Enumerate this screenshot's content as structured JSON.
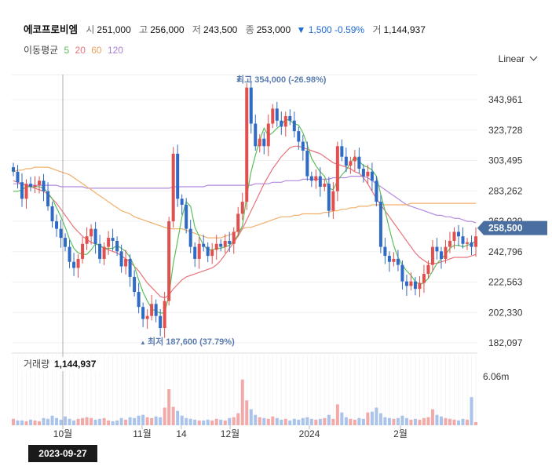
{
  "header": {
    "name": "에코프로비엠",
    "open_label": "시",
    "open": "251,000",
    "high_label": "고",
    "high": "256,000",
    "low_label": "저",
    "low": "243,500",
    "close_label": "종",
    "close": "253,000",
    "change": "▼ 1,500 -0.59%",
    "volume_label": "거",
    "volume": "1,144,937"
  },
  "ma": {
    "label": "이동평균",
    "p5": "5",
    "p20": "20",
    "p60": "60",
    "p120": "120"
  },
  "scale_mode": "Linear",
  "cursor_date": "2023-09-27",
  "colors": {
    "up": "#e0504e",
    "down": "#2f6bc5",
    "ma5": "#5cbf5c",
    "ma20": "#e8737a",
    "ma60": "#f2b06b",
    "ma120": "#b48ae0",
    "price_tag": "#4a6ea0"
  },
  "chart_data": {
    "type": "candlestick",
    "price_ticks": [
      "343,961",
      "323,728",
      "303,495",
      "283,262",
      "263,029",
      "242,796",
      "222,563",
      "202,330",
      "182,097"
    ],
    "volume_tick": "6.06m",
    "x_labels": [
      "10월",
      "11월",
      "14",
      "12월",
      "2024",
      "2월"
    ],
    "current_price": "258,500",
    "annotation_high": "최고 354,000 (-26.98%)",
    "annotation_low": "최저 187,600 (37.79%)",
    "volume_label": "거래량",
    "volume_value": "1,144,937",
    "closes": [
      296000,
      289000,
      278000,
      288000,
      286000,
      287000,
      290000,
      283000,
      273000,
      263000,
      258000,
      252000,
      246000,
      236000,
      232000,
      238000,
      248000,
      253000,
      258000,
      248000,
      238000,
      246000,
      252000,
      250000,
      243000,
      233000,
      238000,
      226000,
      216000,
      206000,
      198000,
      200000,
      208000,
      200000,
      192000,
      210000,
      263000,
      308000,
      278000,
      274000,
      258000,
      246000,
      238000,
      248000,
      246000,
      240000,
      244000,
      248000,
      246000,
      250000,
      248000,
      256000,
      268000,
      276000,
      352000,
      328000,
      313000,
      318000,
      313000,
      328000,
      338000,
      330000,
      326000,
      333000,
      330000,
      323000,
      316000,
      310000,
      293000,
      290000,
      293000,
      286000,
      288000,
      270000,
      283000,
      313000,
      306000,
      300000,
      303000,
      306000,
      298000,
      293000,
      296000,
      290000,
      276000,
      246000,
      240000,
      236000,
      238000,
      234000,
      223000,
      220000,
      223000,
      218000,
      222000,
      228000,
      234000,
      246000,
      243000,
      238000,
      246000,
      250000,
      256000,
      253000,
      248000,
      249000,
      246000,
      253000
    ],
    "ma5": [
      283000,
      283000,
      284000,
      286000,
      286000,
      286000,
      286000,
      285000,
      282000,
      278000,
      272000,
      266000,
      259000,
      251000,
      245000,
      242000,
      241000,
      241000,
      244000,
      248000,
      247000,
      245000,
      245000,
      245000,
      247000,
      245000,
      243000,
      239000,
      233000,
      224000,
      216000,
      210000,
      205000,
      203000,
      202000,
      202000,
      214000,
      235000,
      250000,
      266000,
      276000,
      273000,
      259000,
      253000,
      247000,
      244000,
      244000,
      245000,
      245000,
      246000,
      247000,
      250000,
      254000,
      260000,
      280000,
      296000,
      307000,
      317000,
      325000,
      320000,
      322000,
      325000,
      327000,
      331000,
      330000,
      328000,
      327000,
      322000,
      314000,
      305000,
      300000,
      296000,
      293000,
      285000,
      284000,
      290000,
      294000,
      297000,
      302000,
      306000,
      303000,
      300000,
      299000,
      297000,
      293000,
      281000,
      270000,
      258000,
      247000,
      239000,
      234000,
      230000,
      227000,
      223000,
      221000,
      222000,
      225000,
      230000,
      235000,
      238000,
      241000,
      245000,
      247000,
      247000,
      246000,
      247000,
      248000,
      250000
    ],
    "ma20": [
      290000,
      289000,
      288000,
      287000,
      286000,
      285000,
      284000,
      283000,
      281000,
      278000,
      275000,
      271000,
      267000,
      263000,
      259000,
      256000,
      253000,
      251000,
      249000,
      248000,
      247000,
      245000,
      244000,
      243000,
      242000,
      240000,
      238000,
      236000,
      233000,
      230000,
      226000,
      222000,
      219000,
      216000,
      213000,
      212000,
      214000,
      218000,
      221000,
      224000,
      226000,
      227000,
      228000,
      229000,
      230000,
      231000,
      232000,
      234000,
      237000,
      241000,
      245000,
      249000,
      253000,
      258000,
      264000,
      270000,
      276000,
      282000,
      288000,
      293000,
      298000,
      302000,
      306000,
      309000,
      312000,
      313000,
      313000,
      312000,
      311000,
      310000,
      309000,
      308000,
      306000,
      304000,
      302000,
      301000,
      300000,
      299000,
      298000,
      296000,
      295000,
      292000,
      288000,
      283000,
      278000,
      274000,
      270000,
      266000,
      262000,
      258000,
      254000,
      250000,
      246000,
      242000,
      239000,
      237000,
      235000,
      235000,
      235000,
      236000,
      237000,
      238000,
      239000,
      239000,
      239000,
      239000,
      240000,
      241000
    ],
    "ma60": [
      296000,
      297000,
      297000,
      298000,
      298000,
      299000,
      299000,
      299000,
      299000,
      298000,
      297000,
      296000,
      295000,
      294000,
      292000,
      290000,
      288000,
      286000,
      284000,
      282000,
      280000,
      278000,
      276000,
      274000,
      272000,
      270000,
      269000,
      268000,
      266000,
      265000,
      264000,
      263000,
      262000,
      261000,
      260000,
      259000,
      258000,
      258000,
      258000,
      258000,
      257000,
      256000,
      255000,
      254000,
      253000,
      252000,
      252000,
      252000,
      252000,
      253000,
      254000,
      255000,
      257000,
      258000,
      259000,
      259000,
      260000,
      261000,
      262000,
      263000,
      264000,
      265000,
      266000,
      266000,
      266000,
      267000,
      267000,
      268000,
      268000,
      268000,
      268000,
      268000,
      269000,
      269000,
      270000,
      270000,
      271000,
      271000,
      272000,
      272000,
      273000,
      273000,
      273000,
      274000,
      274000,
      274000,
      274000,
      274000,
      274000,
      274000,
      274000,
      274000,
      275000,
      275000,
      275000,
      275000,
      275000,
      275000,
      275000,
      275000,
      275000,
      275000,
      275000,
      275000,
      275000,
      275000,
      275000,
      275000
    ],
    "ma120": [
      288000,
      288000,
      288000,
      287000,
      287000,
      287000,
      287000,
      287000,
      287000,
      287000,
      287000,
      286000,
      286000,
      286000,
      286000,
      286000,
      286000,
      285000,
      285000,
      285000,
      285000,
      285000,
      285000,
      285000,
      285000,
      285000,
      285000,
      285000,
      285000,
      285000,
      285000,
      285000,
      285000,
      285000,
      285000,
      285000,
      285000,
      286000,
      286000,
      286000,
      286000,
      286000,
      286000,
      286000,
      286000,
      287000,
      287000,
      287000,
      287000,
      287000,
      287000,
      287000,
      287000,
      287000,
      287000,
      287000,
      288000,
      288000,
      288000,
      288000,
      289000,
      289000,
      289000,
      290000,
      290000,
      290000,
      290000,
      291000,
      291000,
      291000,
      291000,
      291000,
      291000,
      291000,
      292000,
      292000,
      292000,
      292000,
      293000,
      293000,
      293000,
      293000,
      292000,
      290000,
      288000,
      286000,
      284000,
      282000,
      280000,
      278000,
      276000,
      274000,
      273000,
      272000,
      271000,
      270000,
      269000,
      268000,
      267000,
      267000,
      266000,
      266000,
      265000,
      265000,
      264000,
      263000,
      263000,
      262000
    ],
    "volumes": [
      0.8,
      0.6,
      0.6,
      0.5,
      0.7,
      0.6,
      0.5,
      0.9,
      0.8,
      1.2,
      0.9,
      0.7,
      1.1,
      0.8,
      0.6,
      0.8,
      0.9,
      1.0,
      0.9,
      0.7,
      0.8,
      0.9,
      0.6,
      0.5,
      0.6,
      0.9,
      0.7,
      1.0,
      0.9,
      1.2,
      1.3,
      1.0,
      0.9,
      1.1,
      1.0,
      2.2,
      4.5,
      2.3,
      1.8,
      1.2,
      0.9,
      0.8,
      0.7,
      0.6,
      0.6,
      0.7,
      0.6,
      0.8,
      0.7,
      0.6,
      0.9,
      1.0,
      1.5,
      5.7,
      3.1,
      2.0,
      1.3,
      1.0,
      0.9,
      0.8,
      1.1,
      0.9,
      0.7,
      0.8,
      0.6,
      0.8,
      0.7,
      0.9,
      1.0,
      0.8,
      0.7,
      0.8,
      0.9,
      1.3,
      0.8,
      2.6,
      1.6,
      1.0,
      0.8,
      0.7,
      0.9,
      0.8,
      1.6,
      1.7,
      2.2,
      1.5,
      1.0,
      0.9,
      0.8,
      0.9,
      1.2,
      0.9,
      0.7,
      0.8,
      0.7,
      0.9,
      1.0,
      2.0,
      1.3,
      1.1,
      0.9,
      0.8,
      0.7,
      0.6,
      0.8,
      0.7,
      3.5,
      0.4
    ]
  }
}
